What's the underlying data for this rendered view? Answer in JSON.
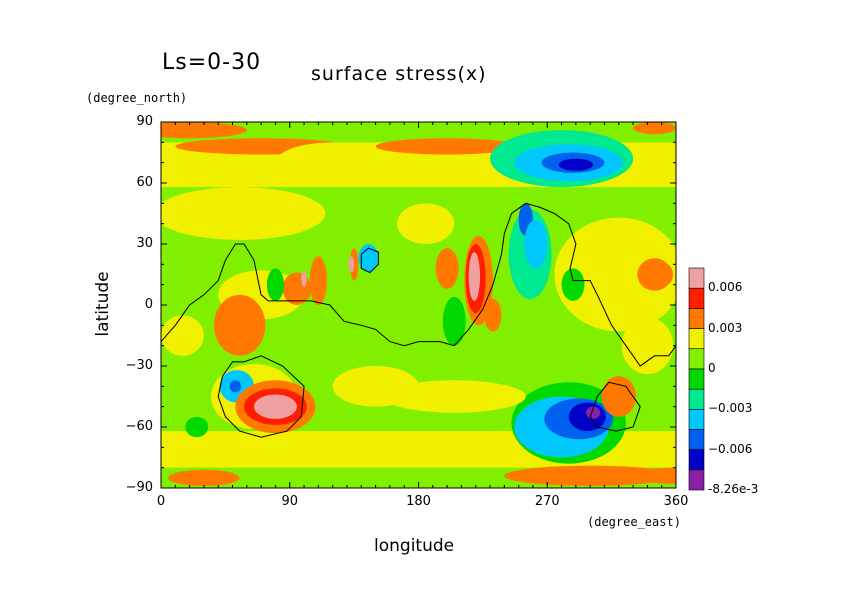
{
  "header": {
    "ls_label": "Ls=0-30",
    "title": "surface stress(x)",
    "y_unit": "(degree_north)",
    "x_unit": "(degree_east)",
    "x_label": "longitude",
    "y_label": "latitude"
  },
  "chart_data": {
    "type": "heatmap",
    "title": "surface stress(x)",
    "subtitle": "Ls=0-30",
    "xlabel": "longitude",
    "ylabel": "latitude",
    "xlim": [
      0,
      360
    ],
    "ylim": [
      -90,
      90
    ],
    "x_ticks": [
      "0",
      "90",
      "180",
      "270",
      "360"
    ],
    "y_ticks": [
      "90",
      "60",
      "30",
      "0",
      "−30",
      "−60",
      "−90"
    ],
    "x_tick_values": [
      0,
      90,
      180,
      270,
      360
    ],
    "y_tick_values": [
      90,
      60,
      30,
      0,
      -30,
      -60,
      -90
    ],
    "colorbar": {
      "levels": [
        -0.00826,
        -0.0075,
        -0.006,
        -0.0045,
        -0.003,
        -0.0015,
        0,
        0.0015,
        0.003,
        0.0045,
        0.006,
        0.0075
      ],
      "colors": [
        "#8b1fa8",
        "#0000c8",
        "#0060f0",
        "#00c8ff",
        "#00e890",
        "#00d800",
        "#80f000",
        "#f0f000",
        "#ff7800",
        "#ff1e00",
        "#f0a0a0"
      ],
      "labels": [
        {
          "value": -0.00826,
          "text": "-8.26e-3"
        },
        {
          "value": -0.006,
          "text": "−0.006"
        },
        {
          "value": -0.003,
          "text": "−0.003"
        },
        {
          "value": 0,
          "text": "0"
        },
        {
          "value": 0.003,
          "text": "0.003"
        },
        {
          "value": 0.006,
          "text": "0.006"
        }
      ]
    },
    "background_value": 0.0008,
    "features": [
      {
        "kind": "box",
        "lon": [
          0,
          360
        ],
        "lat": [
          58,
          80
        ],
        "value": 0.0018
      },
      {
        "kind": "box",
        "lon": [
          0,
          360
        ],
        "lat": [
          -80,
          -62
        ],
        "value": 0.0018
      },
      {
        "kind": "box",
        "lon": [
          0,
          360
        ],
        "lat": [
          80,
          90
        ],
        "value": 0.0008
      },
      {
        "kind": "box",
        "lon": [
          0,
          360
        ],
        "lat": [
          -90,
          -80
        ],
        "value": 0.0008
      },
      {
        "kind": "ellipse",
        "lon": 5,
        "lat": 87,
        "rlon": 6,
        "rlat": 3,
        "value": 0.004
      },
      {
        "kind": "ellipse",
        "lon": 345,
        "lat": 87,
        "rlon": 15,
        "rlat": 3,
        "value": 0.004
      },
      {
        "kind": "ellipse",
        "lon": 20,
        "lat": 86,
        "rlon": 40,
        "rlat": 4,
        "value": 0.0032
      },
      {
        "kind": "ellipse",
        "lon": 300,
        "lat": -84,
        "rlon": 60,
        "rlat": 5,
        "value": 0.0038
      },
      {
        "kind": "ellipse",
        "lon": 360,
        "lat": -84,
        "rlon": 30,
        "rlat": 4,
        "value": 0.004
      },
      {
        "kind": "ellipse",
        "lon": 30,
        "lat": -85,
        "rlon": 25,
        "rlat": 4,
        "value": 0.0032
      },
      {
        "kind": "ellipse",
        "lon": 70,
        "lat": 78,
        "rlon": 60,
        "rlat": 4,
        "value": 0.0032
      },
      {
        "kind": "ellipse",
        "lon": 200,
        "lat": 78,
        "rlon": 50,
        "rlat": 4,
        "value": 0.0032
      },
      {
        "kind": "ellipse",
        "lon": 280,
        "lat": 72,
        "rlon": 50,
        "rlat": 14,
        "value": -0.002
      },
      {
        "kind": "ellipse",
        "lon": 285,
        "lat": 70,
        "rlon": 38,
        "rlat": 9,
        "value": -0.0035
      },
      {
        "kind": "ellipse",
        "lon": 288,
        "lat": 70,
        "rlon": 22,
        "rlat": 5,
        "value": -0.006
      },
      {
        "kind": "ellipse",
        "lon": 290,
        "lat": 69,
        "rlon": 12,
        "rlat": 3,
        "value": -0.007
      },
      {
        "kind": "ellipse",
        "lon": 120,
        "lat": 70,
        "rlon": 40,
        "rlat": 10,
        "value": 0.0018
      },
      {
        "kind": "ellipse",
        "lon": 55,
        "lat": 45,
        "rlon": 60,
        "rlat": 13,
        "value": 0.0018
      },
      {
        "kind": "ellipse",
        "lon": 70,
        "lat": 5,
        "rlon": 30,
        "rlat": 12,
        "value": 0.0018
      },
      {
        "kind": "ellipse",
        "lon": 185,
        "lat": 40,
        "rlon": 20,
        "rlat": 10,
        "value": 0.0018
      },
      {
        "kind": "ellipse",
        "lon": 320,
        "lat": 15,
        "rlon": 45,
        "rlat": 28,
        "value": 0.0018
      },
      {
        "kind": "ellipse",
        "lon": 15,
        "lat": -15,
        "rlon": 15,
        "rlat": 10,
        "value": 0.0018
      },
      {
        "kind": "ellipse",
        "lon": 150,
        "lat": -40,
        "rlon": 30,
        "rlat": 10,
        "value": 0.0018
      },
      {
        "kind": "ellipse",
        "lon": 200,
        "lat": 18,
        "rlon": 8,
        "rlat": 10,
        "value": 0.0032
      },
      {
        "kind": "ellipse",
        "lon": 110,
        "lat": 12,
        "rlon": 6,
        "rlat": 12,
        "value": 0.0032
      },
      {
        "kind": "ellipse",
        "lon": 55,
        "lat": -10,
        "rlon": 18,
        "rlat": 15,
        "value": 0.0032
      },
      {
        "kind": "ellipse",
        "lon": 95,
        "lat": 8,
        "rlon": 10,
        "rlat": 8,
        "value": 0.0032
      },
      {
        "kind": "ellipse",
        "lon": 345,
        "lat": 15,
        "rlon": 12,
        "rlat": 8,
        "value": 0.0032
      },
      {
        "kind": "ellipse",
        "lon": 145,
        "lat": 23,
        "rlon": 7,
        "rlat": 7,
        "value": -0.0035
      },
      {
        "kind": "ellipse",
        "lon": 80,
        "lat": 10,
        "rlon": 6,
        "rlat": 8,
        "value": -0.0015
      },
      {
        "kind": "ellipse",
        "lon": 288,
        "lat": 10,
        "rlon": 8,
        "rlat": 8,
        "value": -0.0015
      },
      {
        "kind": "ellipse",
        "lon": 205,
        "lat": -8,
        "rlon": 8,
        "rlat": 12,
        "value": -0.0015
      },
      {
        "kind": "ellipse",
        "lon": 285,
        "lat": -58,
        "rlon": 40,
        "rlat": 20,
        "value": -0.0015
      },
      {
        "kind": "ellipse",
        "lon": 280,
        "lat": -60,
        "rlon": 33,
        "rlat": 15,
        "value": -0.0035
      },
      {
        "kind": "ellipse",
        "lon": 292,
        "lat": -56,
        "rlon": 24,
        "rlat": 10,
        "value": -0.0052
      },
      {
        "kind": "ellipse",
        "lon": 298,
        "lat": -55,
        "rlon": 13,
        "rlat": 7,
        "value": -0.0067
      },
      {
        "kind": "ellipse",
        "lon": 302,
        "lat": -53,
        "rlon": 5,
        "rlat": 3,
        "value": -0.008
      },
      {
        "kind": "ellipse",
        "lon": 320,
        "lat": -45,
        "rlon": 12,
        "rlat": 10,
        "value": 0.0032
      },
      {
        "kind": "ellipse",
        "lon": 65,
        "lat": -45,
        "rlon": 30,
        "rlat": 16,
        "value": 0.0018
      },
      {
        "kind": "ellipse",
        "lon": 53,
        "lat": -40,
        "rlon": 12,
        "rlat": 8,
        "value": -0.0035
      },
      {
        "kind": "ellipse",
        "lon": 52,
        "lat": -40,
        "rlon": 4,
        "rlat": 3,
        "value": -0.0052
      },
      {
        "kind": "ellipse",
        "lon": 80,
        "lat": -50,
        "rlon": 28,
        "rlat": 13,
        "value": 0.0032
      },
      {
        "kind": "ellipse",
        "lon": 80,
        "lat": -50,
        "rlon": 22,
        "rlat": 9,
        "value": 0.0052
      },
      {
        "kind": "ellipse",
        "lon": 80,
        "lat": -50,
        "rlon": 15,
        "rlat": 6,
        "value": 0.0067
      },
      {
        "kind": "ellipse",
        "lon": 78,
        "lat": -50,
        "rlon": 8,
        "rlat": 4,
        "value": 0.0079
      },
      {
        "kind": "ellipse",
        "lon": 222,
        "lat": 12,
        "rlon": 10,
        "rlat": 22,
        "value": 0.0032
      },
      {
        "kind": "ellipse",
        "lon": 220,
        "lat": 13,
        "rlon": 7,
        "rlat": 17,
        "value": 0.0052
      },
      {
        "kind": "ellipse",
        "lon": 219,
        "lat": 14,
        "rlon": 4,
        "rlat": 12,
        "value": 0.0067
      },
      {
        "kind": "ellipse",
        "lon": 218,
        "lat": 12,
        "rlon": 2,
        "rlat": 6,
        "value": 0.0079
      },
      {
        "kind": "ellipse",
        "lon": 232,
        "lat": -5,
        "rlon": 6,
        "rlat": 8,
        "value": 0.004
      },
      {
        "kind": "ellipse",
        "lon": 258,
        "lat": 25,
        "rlon": 15,
        "rlat": 22,
        "value": -0.002
      },
      {
        "kind": "ellipse",
        "lon": 255,
        "lat": 42,
        "rlon": 5,
        "rlat": 8,
        "value": -0.006
      },
      {
        "kind": "ellipse",
        "lon": 262,
        "lat": 30,
        "rlon": 8,
        "rlat": 12,
        "value": -0.0035
      },
      {
        "kind": "ellipse",
        "lon": 135,
        "lat": 20,
        "rlon": 3,
        "rlat": 8,
        "value": 0.004
      },
      {
        "kind": "ellipse",
        "lon": 100,
        "lat": 13,
        "rlon": 2,
        "rlat": 4,
        "value": 0.006
      },
      {
        "kind": "ellipse",
        "lon": 133,
        "lat": 20,
        "rlon": 2,
        "rlat": 4,
        "value": 0.006
      },
      {
        "kind": "ellipse",
        "lon": 350,
        "lat": 15,
        "rlon": 8,
        "rlat": 6,
        "value": 0.0035
      },
      {
        "kind": "ellipse",
        "lon": 25,
        "lat": -60,
        "rlon": 8,
        "rlat": 5,
        "value": -0.0015
      },
      {
        "kind": "ellipse",
        "lon": 340,
        "lat": -20,
        "rlon": 18,
        "rlat": 14,
        "value": 0.0022
      },
      {
        "kind": "ellipse",
        "lon": 205,
        "lat": -45,
        "rlon": 50,
        "rlat": 8,
        "value": 0.0018
      }
    ],
    "contours": [
      [
        [
          0,
          -18
        ],
        [
          10,
          -10
        ],
        [
          20,
          0
        ],
        [
          30,
          5
        ],
        [
          40,
          12
        ],
        [
          45,
          22
        ],
        [
          52,
          30
        ],
        [
          58,
          30
        ],
        [
          65,
          22
        ],
        [
          70,
          5
        ],
        [
          75,
          2
        ],
        [
          90,
          2
        ],
        [
          105,
          2
        ],
        [
          118,
          0
        ],
        [
          128,
          -8
        ],
        [
          140,
          -10
        ],
        [
          150,
          -12
        ],
        [
          160,
          -18
        ],
        [
          170,
          -20
        ],
        [
          180,
          -18
        ],
        [
          195,
          -18
        ],
        [
          205,
          -20
        ],
        [
          215,
          -12
        ],
        [
          225,
          -2
        ],
        [
          232,
          10
        ],
        [
          238,
          25
        ],
        [
          240,
          35
        ],
        [
          245,
          45
        ],
        [
          255,
          50
        ],
        [
          265,
          48
        ],
        [
          275,
          45
        ],
        [
          285,
          40
        ],
        [
          290,
          30
        ],
        [
          286,
          18
        ],
        [
          288,
          12
        ],
        [
          300,
          12
        ],
        [
          305,
          5
        ],
        [
          315,
          -10
        ],
        [
          325,
          -20
        ],
        [
          335,
          -30
        ],
        [
          345,
          -25
        ],
        [
          355,
          -25
        ],
        [
          360,
          -20
        ]
      ],
      [
        [
          43,
          -35
        ],
        [
          50,
          -28
        ],
        [
          58,
          -28
        ],
        [
          70,
          -25
        ],
        [
          85,
          -30
        ],
        [
          100,
          -40
        ],
        [
          98,
          -55
        ],
        [
          88,
          -62
        ],
        [
          70,
          -65
        ],
        [
          55,
          -62
        ],
        [
          45,
          -55
        ],
        [
          40,
          -45
        ],
        [
          43,
          -35
        ]
      ],
      [
        [
          300,
          -55
        ],
        [
          305,
          -45
        ],
        [
          313,
          -38
        ],
        [
          325,
          -40
        ],
        [
          335,
          -50
        ],
        [
          330,
          -60
        ],
        [
          318,
          -62
        ],
        [
          305,
          -60
        ],
        [
          300,
          -55
        ]
      ],
      [
        [
          140,
          25
        ],
        [
          145,
          28
        ],
        [
          152,
          26
        ],
        [
          152,
          20
        ],
        [
          146,
          16
        ],
        [
          140,
          18
        ],
        [
          140,
          25
        ]
      ]
    ]
  }
}
